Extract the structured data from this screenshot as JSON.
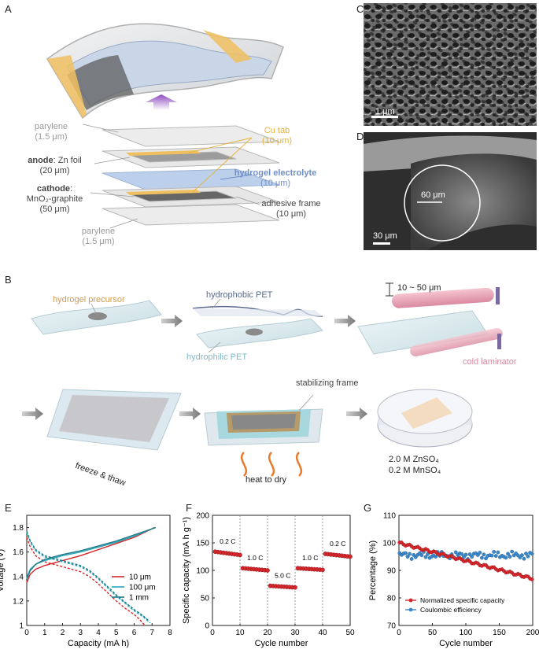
{
  "panels": {
    "A": "A",
    "B": "B",
    "C": "C",
    "D": "D",
    "E": "E",
    "F": "F",
    "G": "G"
  },
  "panelA": {
    "parylene_top": "parylene",
    "parylene_top_thick": "(1.5 μm)",
    "anode_bold": "anode",
    "anode_rest": ": Zn foil",
    "anode_thick": "(20 μm)",
    "cathode_bold": "cathode",
    "cathode_colon": ":",
    "cathode_mat": "MnO₂-graphite",
    "cathode_thick": "(50 μm)",
    "parylene_bot": "parylene",
    "parylene_bot_thick": "(1.5 μm)",
    "cu_tab": "Cu tab",
    "cu_tab_thick": "(10 μm)",
    "hydrogel": "hydrogel electrolyte",
    "hydrogel_thick": "(10 μm)",
    "adhesive": "adhesive frame",
    "adhesive_thick": "(10 μm)",
    "colors": {
      "cu": "#f0c060",
      "hydrogel": "#6f8fc7",
      "layer": "#d9d9d9"
    }
  },
  "panelC": {
    "scalebar": "1 μm"
  },
  "panelD": {
    "circle_label": "60 μm",
    "scalebar": "30 μm"
  },
  "panelB": {
    "hydrogel_precursor": "hydrogel precursor",
    "hydrophobic": "hydrophobic PET",
    "hydrophilic": "hydrophilic PET",
    "thickness": "10 ~ 50 μm",
    "laminator": "cold laminator",
    "freeze": "freeze & thaw",
    "frame": "stabilizing frame",
    "heat": "heat to dry",
    "sol1": "2.0 M ZnSO₄",
    "sol2": "0.2 M MnSO₄",
    "colors": {
      "precursor": "#d79a4a",
      "hydrophobic": "#5a6b8c",
      "hydrophilic": "#7fb9c4",
      "laminator": "#d98aa0",
      "heat": "#e87a2a"
    }
  },
  "chart_data": [
    {
      "type": "line",
      "xlabel": "Capacity (mA h)",
      "ylabel": "Voltage (V)",
      "xlim": [
        0,
        8
      ],
      "ylim": [
        1.0,
        1.9
      ],
      "xticks": [
        0,
        1,
        2,
        3,
        4,
        5,
        6,
        7,
        8
      ],
      "yticks": [
        1.0,
        1.2,
        1.4,
        1.6,
        1.8
      ],
      "series": [
        {
          "name": "10 μm",
          "color": "#d7262b",
          "charge": [
            [
              0,
              1.35
            ],
            [
              0.2,
              1.42
            ],
            [
              0.5,
              1.46
            ],
            [
              1,
              1.49
            ],
            [
              2,
              1.53
            ],
            [
              3,
              1.57
            ],
            [
              4,
              1.62
            ],
            [
              5,
              1.67
            ],
            [
              6,
              1.72
            ],
            [
              7,
              1.79
            ],
            [
              7.1,
              1.8
            ]
          ],
          "discharge": [
            [
              0,
              1.72
            ],
            [
              0.2,
              1.64
            ],
            [
              0.5,
              1.57
            ],
            [
              1,
              1.52
            ],
            [
              1.5,
              1.5
            ],
            [
              2,
              1.48
            ],
            [
              2.5,
              1.46
            ],
            [
              3,
              1.44
            ],
            [
              3.5,
              1.4
            ],
            [
              4,
              1.34
            ],
            [
              4.5,
              1.27
            ],
            [
              5,
              1.2
            ],
            [
              5.5,
              1.14
            ],
            [
              6,
              1.09
            ],
            [
              6.3,
              1.05
            ],
            [
              6.6,
              1.0
            ]
          ]
        },
        {
          "name": "100 μm",
          "color": "#2aa5b8",
          "charge": [
            [
              0,
              1.39
            ],
            [
              0.2,
              1.46
            ],
            [
              0.5,
              1.5
            ],
            [
              1,
              1.53
            ],
            [
              2,
              1.57
            ],
            [
              3,
              1.6
            ],
            [
              4,
              1.64
            ],
            [
              5,
              1.68
            ],
            [
              6,
              1.73
            ],
            [
              7,
              1.79
            ],
            [
              7.2,
              1.8
            ]
          ],
          "discharge": [
            [
              0,
              1.76
            ],
            [
              0.2,
              1.68
            ],
            [
              0.5,
              1.61
            ],
            [
              1,
              1.56
            ],
            [
              1.5,
              1.54
            ],
            [
              2,
              1.52
            ],
            [
              2.5,
              1.5
            ],
            [
              3,
              1.48
            ],
            [
              3.5,
              1.44
            ],
            [
              4,
              1.38
            ],
            [
              4.5,
              1.31
            ],
            [
              5,
              1.24
            ],
            [
              5.5,
              1.18
            ],
            [
              6,
              1.12
            ],
            [
              6.5,
              1.07
            ],
            [
              6.9,
              1.02
            ]
          ]
        },
        {
          "name": "1 mm",
          "color": "#1b7a86",
          "charge": [
            [
              0,
              1.38
            ],
            [
              0.2,
              1.45
            ],
            [
              0.5,
              1.5
            ],
            [
              1,
              1.54
            ],
            [
              2,
              1.58
            ],
            [
              3,
              1.61
            ],
            [
              4,
              1.65
            ],
            [
              5,
              1.69
            ],
            [
              6,
              1.74
            ],
            [
              7,
              1.79
            ],
            [
              7.2,
              1.8
            ]
          ],
          "discharge": [
            [
              0,
              1.77
            ],
            [
              0.2,
              1.69
            ],
            [
              0.5,
              1.62
            ],
            [
              1,
              1.57
            ],
            [
              1.5,
              1.55
            ],
            [
              2,
              1.53
            ],
            [
              2.5,
              1.51
            ],
            [
              3,
              1.49
            ],
            [
              3.5,
              1.45
            ],
            [
              4,
              1.39
            ],
            [
              4.5,
              1.32
            ],
            [
              5,
              1.25
            ],
            [
              5.5,
              1.19
            ],
            [
              6,
              1.13
            ],
            [
              6.5,
              1.08
            ],
            [
              6.8,
              1.04
            ]
          ]
        }
      ]
    },
    {
      "type": "scatter",
      "xlabel": "Cycle number",
      "ylabel": "Specific capacity (mA h g⁻¹)",
      "xlim": [
        0,
        50
      ],
      "ylim": [
        0,
        200
      ],
      "xticks": [
        0,
        10,
        20,
        30,
        40,
        50
      ],
      "yticks": [
        0,
        50,
        100,
        150,
        200
      ],
      "dividers": [
        10,
        20,
        30,
        40
      ],
      "segments": [
        {
          "label": "0.2 C",
          "x0": 1,
          "x1": 10,
          "y0": 134,
          "y1": 128
        },
        {
          "label": "1.0 C",
          "x0": 11,
          "x1": 20,
          "y0": 104,
          "y1": 100
        },
        {
          "label": "5.0 C",
          "x0": 21,
          "x1": 30,
          "y0": 72,
          "y1": 69
        },
        {
          "label": "1.0 C",
          "x0": 31,
          "x1": 40,
          "y0": 104,
          "y1": 101
        },
        {
          "label": "0.2 C",
          "x0": 41,
          "x1": 50,
          "y0": 130,
          "y1": 125
        }
      ],
      "color": "#d7262b"
    },
    {
      "type": "line",
      "xlabel": "Cycle number",
      "ylabel": "Percentage (%)",
      "xlim": [
        0,
        200
      ],
      "ylim": [
        70,
        110
      ],
      "xticks": [
        0,
        50,
        100,
        150,
        200
      ],
      "yticks": [
        70,
        80,
        90,
        100,
        110
      ],
      "series": [
        {
          "name": "Normalized specific capacity",
          "color": "#d7262b",
          "from": 100,
          "to": 87
        },
        {
          "name": "Coulombic efficiency",
          "color": "#3b87c9",
          "mean": 95.5
        }
      ]
    }
  ]
}
